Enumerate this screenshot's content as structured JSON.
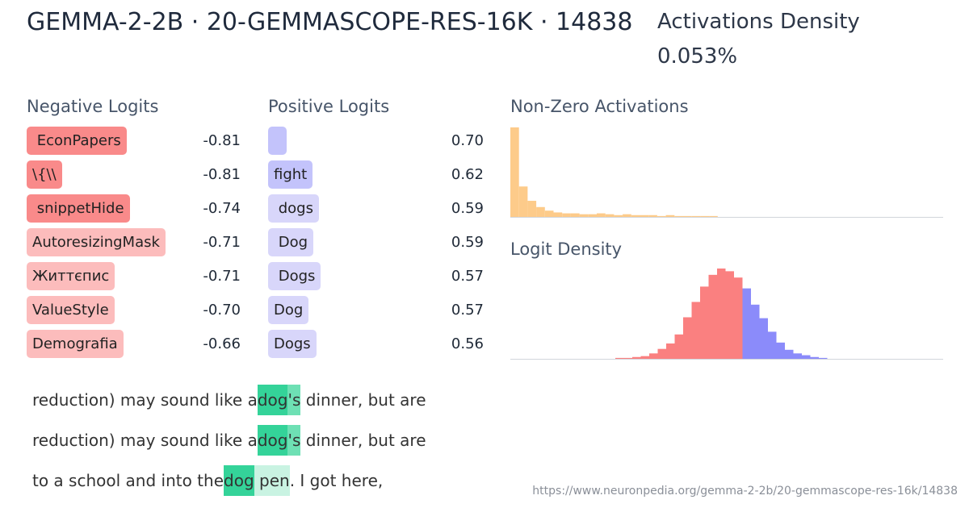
{
  "header": {
    "title": "GEMMA-2-2B · 20-GEMMASCOPE-RES-16K · 14838",
    "density_label": "Activations Density",
    "density_value": "0.053%"
  },
  "negative_logits": {
    "label": "Negative Logits",
    "rows": [
      {
        "token": " EconPapers",
        "value": "-0.81",
        "color": "#f98a8a"
      },
      {
        "token": "\\{\\\\",
        "value": "-0.81",
        "color": "#f98a8a"
      },
      {
        "token": " snippetHide",
        "value": "-0.74",
        "color": "#f98a8a"
      },
      {
        "token": "AutoresizingMask",
        "value": "-0.71",
        "color": "#fcbcbc"
      },
      {
        "token": "Життєпис",
        "value": "-0.71",
        "color": "#fcbcbc"
      },
      {
        "token": "ValueStyle",
        "value": "-0.70",
        "color": "#fcbcbc"
      },
      {
        "token": "Demografia",
        "value": "-0.66",
        "color": "#fcbcbc"
      }
    ]
  },
  "positive_logits": {
    "label": "Positive Logits",
    "rows": [
      {
        "token": " ",
        "value": "0.70",
        "color": "#c3c3fb"
      },
      {
        "token": "fight",
        "value": "0.62",
        "color": "#c3c3fb"
      },
      {
        "token": " dogs",
        "value": "0.59",
        "color": "#d8d6fa"
      },
      {
        "token": " Dog",
        "value": "0.59",
        "color": "#d8d6fa"
      },
      {
        "token": " Dogs",
        "value": "0.57",
        "color": "#d8d6fa"
      },
      {
        "token": "Dog",
        "value": "0.57",
        "color": "#d8d6fa"
      },
      {
        "token": "Dogs",
        "value": "0.56",
        "color": "#d8d6fa"
      }
    ]
  },
  "activations_histogram": {
    "label": "Non-Zero Activations",
    "color": "#fdcb8a",
    "values": [
      100,
      34,
      18,
      11,
      7,
      5,
      4,
      4,
      3,
      3,
      4,
      3,
      2,
      3,
      2,
      2,
      2,
      1,
      2,
      1,
      1,
      1,
      1,
      1
    ]
  },
  "logit_density": {
    "label": "Logit Density",
    "series": [
      {
        "color": "#fa8080",
        "values": [
          1,
          1,
          2,
          3,
          6,
          11,
          17,
          27,
          46,
          63,
          80,
          93,
          100,
          97,
          90
        ]
      },
      {
        "color": "#8b8bfa",
        "values": [
          78,
          60,
          45,
          30,
          18,
          10,
          6,
          4,
          2,
          1
        ]
      }
    ]
  },
  "examples": [
    [
      {
        "text": "reduction) may sound like a"
      },
      {
        "text": "dog",
        "color": "#34d399"
      },
      {
        "text": "'s",
        "color": "#6ee0b4"
      },
      {
        "text": " dinner, but are"
      }
    ],
    [
      {
        "text": "reduction) may sound like a"
      },
      {
        "text": "dog",
        "color": "#34d399"
      },
      {
        "text": "'s",
        "color": "#6ee0b4"
      },
      {
        "text": " dinner, but are"
      }
    ],
    [
      {
        "text": "to a school and into the"
      },
      {
        "text": "dog",
        "color": "#34d399"
      },
      {
        "text": " pen",
        "color": "#c9f3e2"
      },
      {
        "text": ". I got here,"
      }
    ]
  ],
  "url": "https://www.neuronpedia.org/gemma-2-2b/20-gemmascope-res-16k/14838"
}
